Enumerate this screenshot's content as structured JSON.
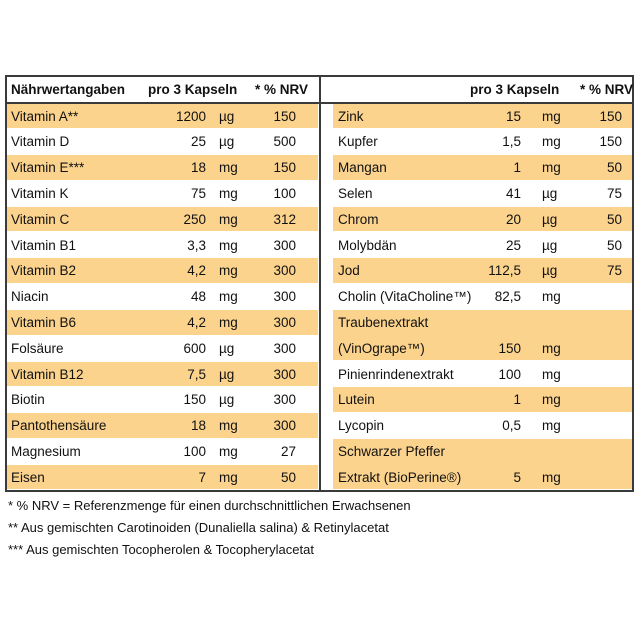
{
  "header": {
    "left": [
      "Nährwertangaben",
      "pro 3 Kapseln",
      "* % NRV"
    ],
    "right": [
      "pro 3 Kapseln",
      "* % NRV"
    ]
  },
  "left_rows": [
    [
      "Vitamin A**",
      "1200",
      "µg",
      "150"
    ],
    [
      "Vitamin D",
      "25",
      "µg",
      "500"
    ],
    [
      "Vitamin E***",
      "18",
      "mg",
      "150"
    ],
    [
      "Vitamin K",
      "75",
      "mg",
      "100"
    ],
    [
      "Vitamin C",
      "250",
      "mg",
      "312"
    ],
    [
      "Vitamin B1",
      "3,3",
      "mg",
      "300"
    ],
    [
      "Vitamin B2",
      "4,2",
      "mg",
      "300"
    ],
    [
      "Niacin",
      "48",
      "mg",
      "300"
    ],
    [
      "Vitamin B6",
      "4,2",
      "mg",
      "300"
    ],
    [
      "Folsäure",
      "600",
      "µg",
      "300"
    ],
    [
      "Vitamin B12",
      "7,5",
      "µg",
      "300"
    ],
    [
      "Biotin",
      "150",
      "µg",
      "300"
    ],
    [
      "Pantothensäure",
      "18",
      "mg",
      "300"
    ],
    [
      "Magnesium",
      "100",
      "mg",
      "27"
    ],
    [
      "Eisen",
      "7",
      "mg",
      "50"
    ]
  ],
  "right_rows": [
    {
      "name": [
        "Zink"
      ],
      "value": "15",
      "unit": "mg",
      "nrv": "150"
    },
    {
      "name": [
        "Kupfer"
      ],
      "value": "1,5",
      "unit": "mg",
      "nrv": "150"
    },
    {
      "name": [
        "Mangan"
      ],
      "value": "1",
      "unit": "mg",
      "nrv": "50"
    },
    {
      "name": [
        "Selen"
      ],
      "value": "41",
      "unit": "µg",
      "nrv": "75"
    },
    {
      "name": [
        "Chrom"
      ],
      "value": "20",
      "unit": "µg",
      "nrv": "50"
    },
    {
      "name": [
        "Molybdän"
      ],
      "value": "25",
      "unit": "µg",
      "nrv": "50"
    },
    {
      "name": [
        "Jod"
      ],
      "value": "112,5",
      "unit": "µg",
      "nrv": "75"
    },
    {
      "name": [
        "Cholin (VitaCholine™)"
      ],
      "value": "82,5",
      "unit": "mg"
    },
    {
      "name": [
        "Traubenextrakt",
        "(VinOgrape™)"
      ],
      "value": "150",
      "unit": "mg"
    },
    {
      "name": [
        "Pinienrindenextrakt"
      ],
      "value": "100",
      "unit": "mg"
    },
    {
      "name": [
        "Lutein"
      ],
      "value": "1",
      "unit": "mg"
    },
    {
      "name": [
        "Lycopin"
      ],
      "value": "0,5",
      "unit": "mg"
    },
    {
      "name": [
        "Schwarzer Pfeffer",
        "Extrakt (BioPerine®)"
      ],
      "value": "5",
      "unit": "mg"
    }
  ],
  "footnotes": [
    "* % NRV = Referenzmenge für einen durchschnittlichen Erwachsenen",
    "** Aus gemischten Carotinoiden (Dunaliella salina) & Retinylacetat",
    "*** Aus gemischten Tocopherolen & Tocopherylacetat"
  ]
}
